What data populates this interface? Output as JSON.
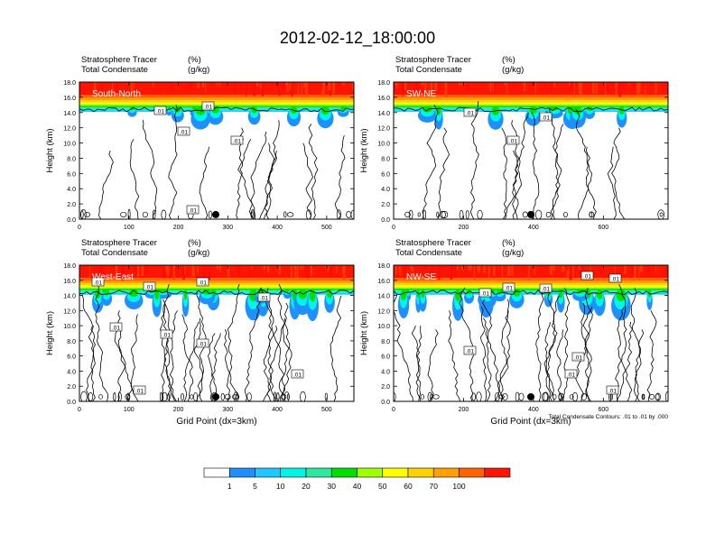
{
  "page_title": "2012-02-12_18:00:00",
  "colors": {
    "tracer_levels": [
      "#ffffff",
      "#1e90ff",
      "#1ec8ff",
      "#00f5e6",
      "#2ee8a0",
      "#00e000",
      "#a0ff00",
      "#ffff00",
      "#ffd200",
      "#ffa000",
      "#ff6400",
      "#ff1400"
    ],
    "contour": "#000000"
  },
  "chart_data": [
    {
      "type": "heatmap",
      "label": "South-North",
      "headers": [
        {
          "name": "Stratosphere Tracer",
          "unit": "(%)"
        },
        {
          "name": "Total Condensate",
          "unit": "(g/kg)"
        }
      ],
      "ylabel": "Height (km)",
      "xlabel": "",
      "xlim": [
        0,
        555
      ],
      "ylim": [
        0,
        18
      ],
      "xticks": [
        0,
        100,
        200,
        300,
        400,
        500
      ],
      "yticks": [
        "0.0",
        "2.0",
        "4.0",
        "6.0",
        "8.0",
        "10.0",
        "12.0",
        "14.0",
        "16.0",
        "18.0"
      ],
      "contour_labels": [
        ".01",
        ".01",
        ".01",
        ".01",
        ".01"
      ],
      "note": ""
    },
    {
      "type": "heatmap",
      "label": "SW-NE",
      "headers": [
        {
          "name": "Stratosphere Tracer",
          "unit": "(%)"
        },
        {
          "name": "Total Condensate",
          "unit": "(g/kg)"
        }
      ],
      "ylabel": "Height (km)",
      "xlabel": "",
      "xlim": [
        0,
        785
      ],
      "ylim": [
        0,
        18
      ],
      "xticks": [
        0,
        200,
        400,
        600
      ],
      "yticks": [
        "0.0",
        "2.0",
        "4.0",
        "6.0",
        "8.0",
        "10.0",
        "12.0",
        "14.0",
        "16.0",
        "18.0"
      ],
      "contour_labels": [
        ".01",
        ".01",
        ".01"
      ],
      "note": ""
    },
    {
      "type": "heatmap",
      "label": "West-East",
      "headers": [
        {
          "name": "Stratosphere Tracer",
          "unit": "(%)"
        },
        {
          "name": "Total Condensate",
          "unit": "(g/kg)"
        }
      ],
      "ylabel": "Height (km)",
      "xlabel": "Grid Point (dx=3km)",
      "xlim": [
        0,
        555
      ],
      "ylim": [
        0,
        18
      ],
      "xticks": [
        0,
        100,
        200,
        300,
        400,
        500
      ],
      "yticks": [
        "0.0",
        "2.0",
        "4.0",
        "6.0",
        "8.0",
        "10.0",
        "12.0",
        "14.0",
        "16.0",
        "18.0"
      ],
      "contour_labels": [
        ".01",
        ".01",
        ".01",
        ".01",
        ".01",
        ".01",
        ".01",
        ".01",
        ".01"
      ],
      "note": ""
    },
    {
      "type": "heatmap",
      "label": "NW-SE",
      "headers": [
        {
          "name": "Stratosphere Tracer",
          "unit": "(%)"
        },
        {
          "name": "Total Condensate",
          "unit": "(g/kg)"
        }
      ],
      "ylabel": "Height (km)",
      "xlabel": "Grid Point (dx=3km)",
      "xlim": [
        0,
        785
      ],
      "ylim": [
        0,
        18
      ],
      "xticks": [
        0,
        200,
        400,
        600
      ],
      "yticks": [
        "0.0",
        "2.0",
        "4.0",
        "6.0",
        "8.0",
        "10.0",
        "12.0",
        "14.0",
        "16.0",
        "18.0"
      ],
      "contour_labels": [
        ".01",
        ".01",
        ".01",
        ".01",
        ".01",
        ".01",
        ".01",
        ".01",
        ".01"
      ],
      "note": "Total Condensate Contours: .01 to .01 by .000"
    }
  ],
  "colorbar": {
    "labels": [
      "1",
      "5",
      "10",
      "20",
      "30",
      "40",
      "50",
      "60",
      "70",
      "100"
    ]
  }
}
